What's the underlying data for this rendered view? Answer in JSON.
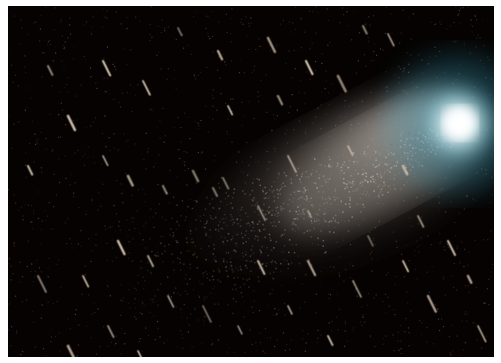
{
  "image": {
    "subject": "comet",
    "colors": {
      "sky": "#050201",
      "coma_core": "#ffffff",
      "coma_halo": "#5fb7c8",
      "tail": "#a9a29b",
      "star_trail": "#d9c7b3",
      "noise_warm": "#6a3a1c",
      "noise_cool": "#2a4a6a"
    }
  }
}
